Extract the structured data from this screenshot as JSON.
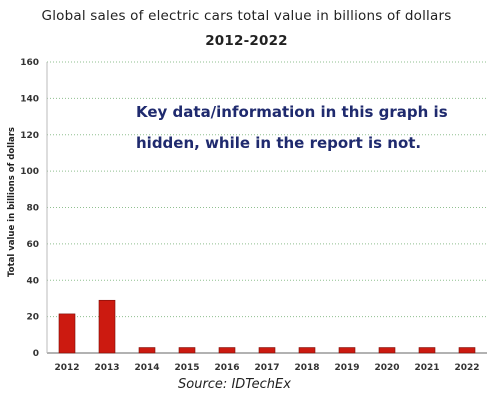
{
  "chart_data": {
    "type": "bar",
    "title_line1": "Global sales of electric cars total value in billions of dollars",
    "title_line2": "2012-2022",
    "ylabel": "Total value in billions of dollars",
    "xlabel": "",
    "categories": [
      "2012",
      "2013",
      "2014",
      "2015",
      "2016",
      "2017",
      "2018",
      "2019",
      "2020",
      "2021",
      "2022"
    ],
    "values": [
      21.5,
      29,
      3,
      3,
      3,
      3,
      3,
      3,
      3,
      3,
      3
    ],
    "ylim": [
      0,
      160
    ],
    "yticks": [
      0,
      20,
      40,
      60,
      80,
      100,
      120,
      140,
      160
    ],
    "grid": true,
    "bar_color": "#cc1a10",
    "note_line1": "Key data/information in this graph is",
    "note_line2": "hidden, while in the report is not.",
    "source": "Source: IDTechEx"
  }
}
